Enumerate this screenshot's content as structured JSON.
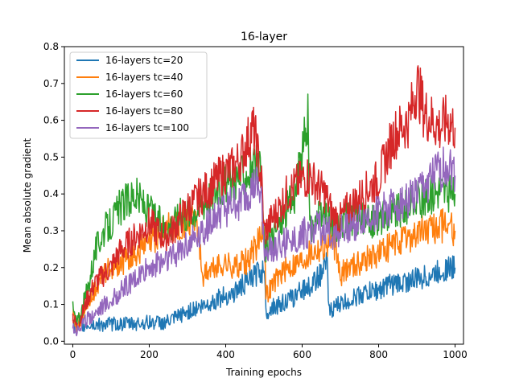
{
  "chart_data": {
    "type": "line",
    "title": "16-layer",
    "xlabel": "Training epochs",
    "ylabel": "Mean absolute gradient",
    "xlim": [
      -22,
      1022
    ],
    "ylim": [
      -0.008,
      0.8
    ],
    "xticks": [
      0,
      200,
      400,
      600,
      800,
      1000
    ],
    "xtick_labels": [
      "0",
      "200",
      "400",
      "600",
      "800",
      "1000"
    ],
    "yticks": [
      0.0,
      0.1,
      0.2,
      0.3,
      0.4,
      0.5,
      0.6,
      0.7,
      0.8
    ],
    "ytick_labels": [
      "0.0",
      "0.1",
      "0.2",
      "0.3",
      "0.4",
      "0.5",
      "0.6",
      "0.7",
      "0.8"
    ],
    "grid": false,
    "legend_position": "top-left",
    "series": [
      {
        "name": "16-layers tc=20",
        "color": "#1f77b4",
        "x": [
          0,
          10,
          20,
          40,
          60,
          80,
          100,
          120,
          140,
          160,
          180,
          200,
          220,
          240,
          260,
          280,
          300,
          320,
          340,
          360,
          380,
          400,
          420,
          440,
          460,
          480,
          495,
          500,
          505,
          520,
          540,
          560,
          580,
          600,
          620,
          640,
          660,
          665,
          670,
          680,
          700,
          720,
          740,
          760,
          780,
          800,
          820,
          840,
          860,
          880,
          900,
          920,
          940,
          960,
          980,
          1000
        ],
        "values": [
          0.045,
          0.03,
          0.04,
          0.045,
          0.045,
          0.046,
          0.047,
          0.047,
          0.048,
          0.048,
          0.05,
          0.052,
          0.052,
          0.05,
          0.058,
          0.07,
          0.08,
          0.09,
          0.095,
          0.105,
          0.115,
          0.125,
          0.13,
          0.15,
          0.165,
          0.18,
          0.19,
          0.22,
          0.08,
          0.09,
          0.1,
          0.11,
          0.12,
          0.14,
          0.15,
          0.17,
          0.2,
          0.22,
          0.08,
          0.09,
          0.1,
          0.11,
          0.12,
          0.13,
          0.135,
          0.14,
          0.15,
          0.155,
          0.16,
          0.165,
          0.17,
          0.175,
          0.18,
          0.19,
          0.2,
          0.2
        ]
      },
      {
        "name": "16-layers tc=40",
        "color": "#ff7f0e",
        "x": [
          0,
          10,
          20,
          40,
          60,
          80,
          100,
          120,
          140,
          160,
          180,
          200,
          220,
          240,
          260,
          280,
          300,
          320,
          340,
          360,
          380,
          400,
          420,
          440,
          460,
          480,
          490,
          495,
          500,
          505,
          520,
          540,
          560,
          580,
          600,
          620,
          640,
          660,
          680,
          700,
          720,
          740,
          760,
          780,
          800,
          820,
          840,
          860,
          880,
          900,
          920,
          940,
          960,
          980,
          1000
        ],
        "values": [
          0.07,
          0.04,
          0.06,
          0.1,
          0.15,
          0.18,
          0.2,
          0.21,
          0.22,
          0.23,
          0.25,
          0.26,
          0.28,
          0.3,
          0.31,
          0.32,
          0.33,
          0.35,
          0.18,
          0.19,
          0.2,
          0.21,
          0.2,
          0.21,
          0.22,
          0.26,
          0.29,
          0.31,
          0.33,
          0.12,
          0.15,
          0.18,
          0.2,
          0.21,
          0.22,
          0.24,
          0.25,
          0.26,
          0.28,
          0.18,
          0.2,
          0.21,
          0.22,
          0.23,
          0.24,
          0.25,
          0.26,
          0.27,
          0.28,
          0.29,
          0.3,
          0.3,
          0.31,
          0.32,
          0.3
        ]
      },
      {
        "name": "16-layers tc=60",
        "color": "#2ca02c",
        "x": [
          0,
          10,
          20,
          40,
          60,
          80,
          100,
          120,
          140,
          160,
          180,
          200,
          220,
          240,
          260,
          280,
          300,
          320,
          340,
          360,
          380,
          400,
          420,
          440,
          460,
          480,
          495,
          500,
          505,
          520,
          540,
          560,
          580,
          600,
          610,
          615,
          620,
          640,
          660,
          680,
          700,
          720,
          740,
          760,
          780,
          800,
          820,
          840,
          860,
          880,
          900,
          920,
          940,
          960,
          980,
          1000
        ],
        "values": [
          0.09,
          0.05,
          0.07,
          0.15,
          0.25,
          0.3,
          0.32,
          0.36,
          0.38,
          0.4,
          0.38,
          0.35,
          0.33,
          0.31,
          0.32,
          0.34,
          0.35,
          0.36,
          0.38,
          0.4,
          0.42,
          0.43,
          0.44,
          0.45,
          0.46,
          0.47,
          0.45,
          0.27,
          0.25,
          0.28,
          0.32,
          0.36,
          0.4,
          0.5,
          0.58,
          0.6,
          0.3,
          0.33,
          0.34,
          0.31,
          0.32,
          0.33,
          0.34,
          0.33,
          0.32,
          0.33,
          0.34,
          0.35,
          0.36,
          0.37,
          0.38,
          0.39,
          0.4,
          0.42,
          0.4,
          0.4
        ]
      },
      {
        "name": "16-layers tc=80",
        "color": "#d62728",
        "x": [
          0,
          10,
          20,
          40,
          60,
          80,
          100,
          120,
          140,
          160,
          180,
          200,
          220,
          240,
          260,
          280,
          300,
          320,
          340,
          360,
          380,
          400,
          420,
          440,
          460,
          470,
          480,
          495,
          500,
          505,
          520,
          540,
          560,
          580,
          600,
          620,
          640,
          660,
          680,
          700,
          720,
          740,
          760,
          780,
          800,
          820,
          840,
          860,
          880,
          900,
          920,
          940,
          960,
          980,
          1000
        ],
        "values": [
          0.07,
          0.04,
          0.06,
          0.12,
          0.16,
          0.18,
          0.2,
          0.24,
          0.26,
          0.28,
          0.3,
          0.32,
          0.3,
          0.28,
          0.3,
          0.33,
          0.36,
          0.38,
          0.4,
          0.42,
          0.44,
          0.46,
          0.47,
          0.5,
          0.55,
          0.58,
          0.54,
          0.42,
          0.3,
          0.3,
          0.33,
          0.36,
          0.4,
          0.42,
          0.44,
          0.45,
          0.42,
          0.4,
          0.34,
          0.33,
          0.36,
          0.38,
          0.4,
          0.42,
          0.44,
          0.5,
          0.56,
          0.58,
          0.6,
          0.7,
          0.62,
          0.6,
          0.58,
          0.6,
          0.58
        ]
      },
      {
        "name": "16-layers tc=100",
        "color": "#9467bd",
        "x": [
          0,
          10,
          20,
          40,
          60,
          80,
          100,
          120,
          140,
          160,
          180,
          200,
          220,
          240,
          260,
          280,
          300,
          320,
          340,
          360,
          380,
          400,
          420,
          440,
          460,
          480,
          495,
          500,
          505,
          520,
          540,
          560,
          580,
          600,
          620,
          640,
          660,
          680,
          700,
          720,
          740,
          760,
          780,
          800,
          820,
          840,
          860,
          880,
          900,
          920,
          940,
          960,
          980,
          1000
        ],
        "values": [
          0.04,
          0.03,
          0.04,
          0.06,
          0.08,
          0.1,
          0.11,
          0.13,
          0.15,
          0.16,
          0.18,
          0.2,
          0.21,
          0.22,
          0.23,
          0.25,
          0.27,
          0.28,
          0.3,
          0.32,
          0.34,
          0.36,
          0.37,
          0.38,
          0.4,
          0.42,
          0.38,
          0.25,
          0.24,
          0.25,
          0.26,
          0.27,
          0.28,
          0.29,
          0.3,
          0.31,
          0.3,
          0.29,
          0.3,
          0.31,
          0.32,
          0.33,
          0.34,
          0.35,
          0.36,
          0.37,
          0.38,
          0.39,
          0.4,
          0.42,
          0.44,
          0.46,
          0.48,
          0.45
        ]
      }
    ]
  }
}
